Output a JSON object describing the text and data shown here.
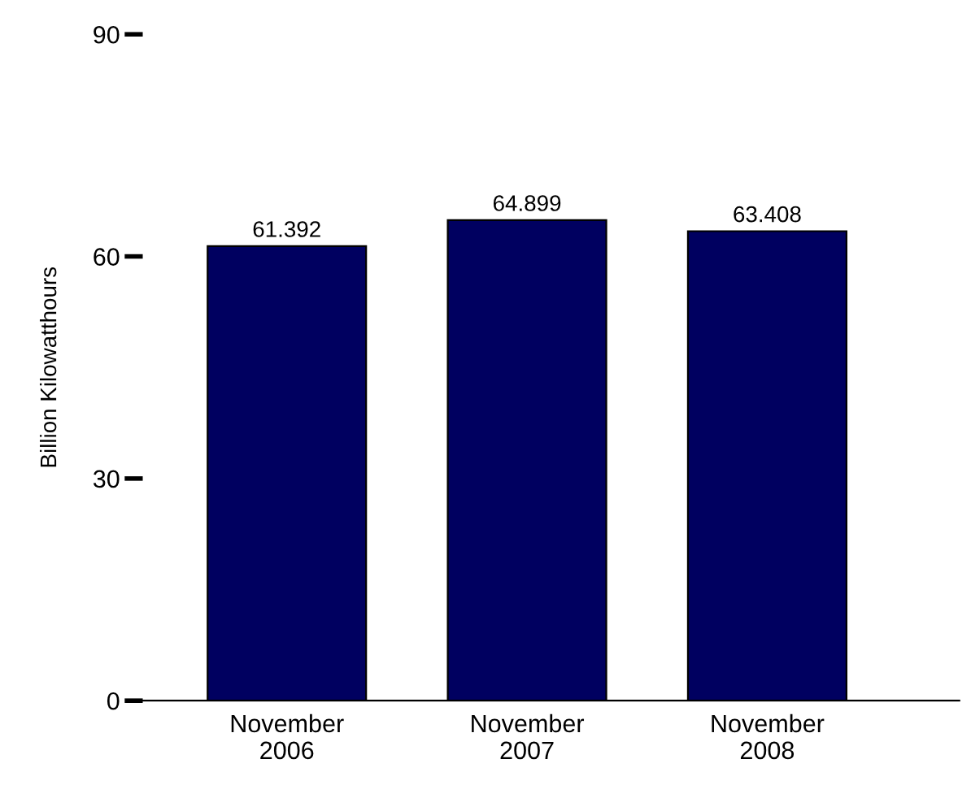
{
  "chart_data": {
    "type": "bar",
    "ylabel": "Billion Kilowatthours",
    "categories": [
      "November\n2006",
      "November\n2007",
      "November\n2008"
    ],
    "values": [
      61.392,
      64.899,
      63.408
    ],
    "value_labels": [
      "61.392",
      "64.899",
      "63.408"
    ],
    "color": "#000060",
    "ylim": [
      0,
      90
    ],
    "yticks": [
      0,
      30,
      60,
      90
    ],
    "grid": false,
    "legend": false
  }
}
